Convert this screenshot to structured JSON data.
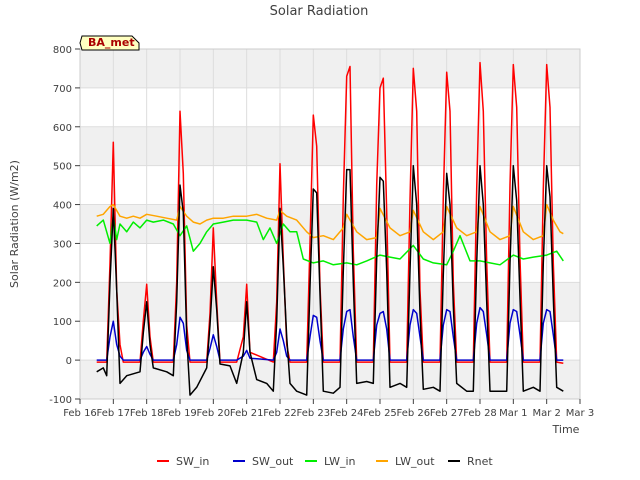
{
  "chart_data": {
    "type": "line",
    "title": "Solar Radiation",
    "ylabel": "Solar Radiation (W/m2)",
    "xlabel": "Time",
    "site_label": "BA_met",
    "ylim": [
      -100,
      800
    ],
    "yticks": [
      -100,
      0,
      100,
      200,
      300,
      400,
      500,
      600,
      700,
      800
    ],
    "xlim": [
      0,
      15
    ],
    "xticks": [
      {
        "x": 0,
        "label": "Feb 16"
      },
      {
        "x": 1,
        "label": "Feb 17"
      },
      {
        "x": 2,
        "label": "Feb 18"
      },
      {
        "x": 3,
        "label": "Feb 19"
      },
      {
        "x": 4,
        "label": "Feb 20"
      },
      {
        "x": 5,
        "label": "Feb 21"
      },
      {
        "x": 6,
        "label": "Feb 22"
      },
      {
        "x": 7,
        "label": "Feb 23"
      },
      {
        "x": 8,
        "label": "Feb 24"
      },
      {
        "x": 9,
        "label": "Feb 25"
      },
      {
        "x": 10,
        "label": "Feb 26"
      },
      {
        "x": 11,
        "label": "Feb 27"
      },
      {
        "x": 12,
        "label": "Feb 28"
      },
      {
        "x": 13,
        "label": "Mar 1"
      },
      {
        "x": 14,
        "label": "Mar 2"
      },
      {
        "x": 15,
        "label": "Mar 3"
      }
    ],
    "legend_position": "bottom",
    "grid": true,
    "series": [
      {
        "name": "SW_in",
        "color": "#ff0000",
        "x": [
          0.5,
          0.8,
          0.9,
          1.0,
          1.1,
          1.2,
          1.3,
          1.8,
          1.9,
          2.0,
          2.1,
          2.2,
          2.8,
          2.9,
          3.0,
          3.1,
          3.2,
          3.3,
          3.8,
          3.9,
          4.0,
          4.1,
          4.2,
          4.7,
          4.9,
          5.0,
          5.1,
          5.8,
          5.9,
          6.0,
          6.1,
          6.2,
          6.3,
          6.8,
          6.9,
          7.0,
          7.1,
          7.2,
          7.3,
          7.8,
          7.9,
          8.0,
          8.1,
          8.2,
          8.3,
          8.8,
          8.9,
          9.0,
          9.1,
          9.2,
          9.3,
          9.8,
          9.9,
          10.0,
          10.1,
          10.2,
          10.3,
          10.8,
          10.9,
          11.0,
          11.1,
          11.2,
          11.3,
          11.8,
          11.9,
          12.0,
          12.1,
          12.2,
          12.3,
          12.8,
          12.9,
          13.0,
          13.1,
          13.2,
          13.3,
          13.8,
          13.9,
          14.0,
          14.1,
          14.2,
          14.3,
          14.5
        ],
        "y": [
          -5,
          -5,
          250,
          560,
          180,
          40,
          -5,
          -5,
          100,
          195,
          60,
          -5,
          -5,
          200,
          640,
          480,
          90,
          -5,
          -5,
          120,
          340,
          150,
          -5,
          -5,
          60,
          195,
          20,
          -5,
          150,
          505,
          260,
          40,
          -5,
          -5,
          300,
          630,
          550,
          190,
          -5,
          -5,
          420,
          730,
          755,
          280,
          -5,
          -5,
          450,
          700,
          725,
          380,
          -5,
          -5,
          410,
          750,
          640,
          180,
          -5,
          -5,
          420,
          740,
          640,
          200,
          -5,
          -5,
          440,
          765,
          640,
          250,
          -5,
          -5,
          450,
          760,
          650,
          260,
          -5,
          -5,
          440,
          760,
          650,
          250,
          -5,
          -8
        ]
      },
      {
        "name": "SW_out",
        "color": "#0000cc",
        "x": [
          0.5,
          0.8,
          0.9,
          1.0,
          1.1,
          1.2,
          1.3,
          1.8,
          1.9,
          2.0,
          2.1,
          2.2,
          2.8,
          2.9,
          3.0,
          3.1,
          3.2,
          3.3,
          3.8,
          3.9,
          4.0,
          4.1,
          4.2,
          4.7,
          4.9,
          5.0,
          5.1,
          5.8,
          5.9,
          6.0,
          6.1,
          6.2,
          6.3,
          6.8,
          6.9,
          7.0,
          7.1,
          7.2,
          7.3,
          7.8,
          7.9,
          8.0,
          8.1,
          8.2,
          8.3,
          8.8,
          8.9,
          9.0,
          9.1,
          9.2,
          9.3,
          9.8,
          9.9,
          10.0,
          10.1,
          10.2,
          10.3,
          10.8,
          10.9,
          11.0,
          11.1,
          11.2,
          11.3,
          11.8,
          11.9,
          12.0,
          12.1,
          12.2,
          12.3,
          12.8,
          12.9,
          13.0,
          13.1,
          13.2,
          13.3,
          13.8,
          13.9,
          14.0,
          14.1,
          14.2,
          14.3,
          14.5
        ],
        "y": [
          0,
          0,
          60,
          100,
          40,
          10,
          0,
          0,
          20,
          35,
          15,
          0,
          0,
          40,
          110,
          95,
          25,
          0,
          0,
          30,
          65,
          35,
          0,
          0,
          10,
          25,
          5,
          0,
          20,
          80,
          50,
          10,
          0,
          0,
          60,
          115,
          110,
          50,
          0,
          0,
          80,
          125,
          130,
          60,
          0,
          0,
          90,
          120,
          125,
          80,
          0,
          0,
          90,
          130,
          120,
          60,
          0,
          0,
          90,
          130,
          125,
          60,
          0,
          0,
          95,
          135,
          125,
          65,
          0,
          0,
          95,
          130,
          125,
          65,
          0,
          0,
          95,
          130,
          125,
          65,
          0,
          0
        ]
      },
      {
        "name": "LW_in",
        "color": "#00ee00",
        "x": [
          0.5,
          0.7,
          0.9,
          1.0,
          1.1,
          1.2,
          1.4,
          1.6,
          1.8,
          2.0,
          2.2,
          2.5,
          2.8,
          3.0,
          3.2,
          3.4,
          3.6,
          3.8,
          4.0,
          4.3,
          4.6,
          5.0,
          5.3,
          5.5,
          5.7,
          5.9,
          6.1,
          6.3,
          6.5,
          6.7,
          7.0,
          7.3,
          7.6,
          8.0,
          8.3,
          8.6,
          9.0,
          9.3,
          9.6,
          10.0,
          10.3,
          10.6,
          11.0,
          11.2,
          11.4,
          11.7,
          12.0,
          12.3,
          12.6,
          13.0,
          13.3,
          13.6,
          14.0,
          14.3,
          14.5
        ],
        "y": [
          345,
          360,
          300,
          370,
          310,
          350,
          330,
          355,
          340,
          360,
          355,
          360,
          350,
          320,
          345,
          280,
          300,
          330,
          350,
          355,
          360,
          360,
          355,
          310,
          340,
          300,
          350,
          330,
          330,
          260,
          250,
          255,
          245,
          250,
          245,
          255,
          270,
          265,
          260,
          295,
          260,
          250,
          245,
          280,
          320,
          255,
          255,
          250,
          245,
          270,
          260,
          265,
          270,
          280,
          255
        ]
      },
      {
        "name": "LW_out",
        "color": "#ffa500",
        "x": [
          0.5,
          0.7,
          0.9,
          1.0,
          1.2,
          1.4,
          1.6,
          1.8,
          2.0,
          2.3,
          2.6,
          2.9,
          3.0,
          3.2,
          3.4,
          3.6,
          3.8,
          4.0,
          4.3,
          4.6,
          5.0,
          5.3,
          5.6,
          5.9,
          6.0,
          6.2,
          6.5,
          6.8,
          7.0,
          7.3,
          7.6,
          7.9,
          8.0,
          8.3,
          8.6,
          8.9,
          9.0,
          9.3,
          9.6,
          9.9,
          10.0,
          10.3,
          10.6,
          10.9,
          11.0,
          11.3,
          11.6,
          11.9,
          12.0,
          12.3,
          12.6,
          12.9,
          13.0,
          13.3,
          13.6,
          13.9,
          14.0,
          14.2,
          14.4,
          14.5
        ],
        "y": [
          370,
          375,
          395,
          400,
          370,
          365,
          370,
          365,
          375,
          370,
          365,
          360,
          395,
          370,
          355,
          350,
          360,
          365,
          365,
          370,
          370,
          375,
          365,
          360,
          385,
          370,
          360,
          330,
          315,
          320,
          310,
          340,
          375,
          330,
          310,
          315,
          390,
          340,
          320,
          330,
          385,
          330,
          310,
          330,
          395,
          340,
          320,
          330,
          395,
          330,
          310,
          320,
          395,
          330,
          310,
          320,
          400,
          360,
          330,
          325
        ]
      },
      {
        "name": "Rnet",
        "color": "#000000",
        "x": [
          0.5,
          0.7,
          0.8,
          0.9,
          1.0,
          1.1,
          1.2,
          1.4,
          1.8,
          1.9,
          2.0,
          2.1,
          2.2,
          2.6,
          2.8,
          2.9,
          3.0,
          3.1,
          3.2,
          3.3,
          3.5,
          3.8,
          3.9,
          4.0,
          4.1,
          4.2,
          4.5,
          4.7,
          4.9,
          5.0,
          5.1,
          5.3,
          5.6,
          5.8,
          5.9,
          6.0,
          6.1,
          6.2,
          6.3,
          6.5,
          6.8,
          6.9,
          7.0,
          7.1,
          7.2,
          7.3,
          7.6,
          7.8,
          7.9,
          8.0,
          8.1,
          8.2,
          8.3,
          8.6,
          8.8,
          8.9,
          9.0,
          9.1,
          9.2,
          9.3,
          9.6,
          9.8,
          9.9,
          10.0,
          10.1,
          10.2,
          10.3,
          10.6,
          10.8,
          10.9,
          11.0,
          11.1,
          11.2,
          11.3,
          11.6,
          11.8,
          11.9,
          12.0,
          12.1,
          12.2,
          12.3,
          12.6,
          12.8,
          12.9,
          13.0,
          13.1,
          13.2,
          13.3,
          13.6,
          13.8,
          13.9,
          14.0,
          14.1,
          14.2,
          14.3,
          14.5
        ],
        "y": [
          -30,
          -20,
          -40,
          200,
          390,
          180,
          -60,
          -40,
          -30,
          70,
          150,
          40,
          -20,
          -30,
          -40,
          150,
          450,
          380,
          60,
          -90,
          -70,
          -20,
          90,
          240,
          130,
          -10,
          -15,
          -60,
          20,
          150,
          20,
          -50,
          -60,
          -80,
          100,
          390,
          240,
          60,
          -60,
          -80,
          -90,
          190,
          440,
          430,
          170,
          -80,
          -85,
          -70,
          230,
          490,
          490,
          200,
          -60,
          -55,
          -60,
          260,
          470,
          460,
          230,
          -70,
          -60,
          -70,
          230,
          500,
          400,
          120,
          -75,
          -70,
          -80,
          220,
          480,
          400,
          140,
          -60,
          -80,
          -80,
          250,
          500,
          400,
          150,
          -80,
          -80,
          -80,
          250,
          500,
          410,
          160,
          -80,
          -70,
          -80,
          250,
          500,
          420,
          160,
          -70,
          -80
        ]
      }
    ]
  }
}
